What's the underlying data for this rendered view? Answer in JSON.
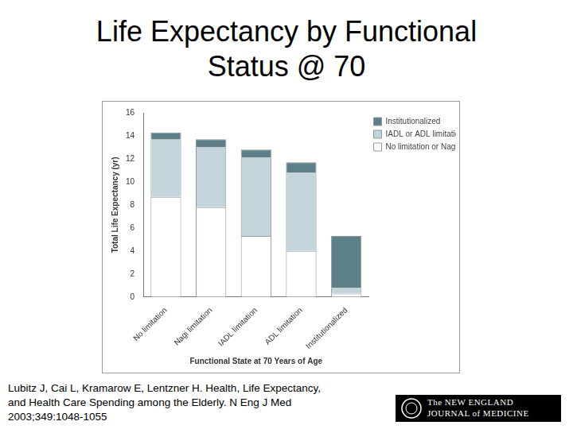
{
  "chart_data": {
    "type": "bar",
    "title": "Life Expectancy by Functional Status @ 70",
    "x_label": "Functional State at 70 Years of Age",
    "y_label": "Total Life Expectancy (yr)",
    "categories": [
      "No limitation",
      "Nagi limitation",
      "IADL limitation",
      "ADL limitation",
      "Institutionalized"
    ],
    "series": [
      {
        "name": "No limitation or Nagi only",
        "color": "#ffffff",
        "values": [
          8.7,
          7.8,
          5.3,
          4.0,
          0.3
        ]
      },
      {
        "name": "IADL or ADL limitation",
        "color": "#c3d5da",
        "values": [
          5.0,
          5.2,
          6.8,
          6.8,
          0.5
        ]
      },
      {
        "name": "Institutionalized",
        "color": "#5d7f88",
        "values": [
          0.6,
          0.7,
          0.7,
          0.9,
          4.5
        ]
      }
    ],
    "stacked": true,
    "ylim": [
      0,
      16
    ],
    "yticks": [
      0,
      2,
      4,
      6,
      8,
      10,
      12,
      14,
      16
    ],
    "grid": false,
    "legend": "top right"
  },
  "footer": {
    "citation": [
      "Lubitz J, Cai L, Kramarow E, Lentzner H. Health, Life Expectancy,",
      "and Health Care Spending among the Elderly. N Eng J Med",
      "2003;349:1048-1055"
    ],
    "logo": [
      "The NEW ENGLAND",
      "JOURNAL of MEDICINE"
    ]
  }
}
